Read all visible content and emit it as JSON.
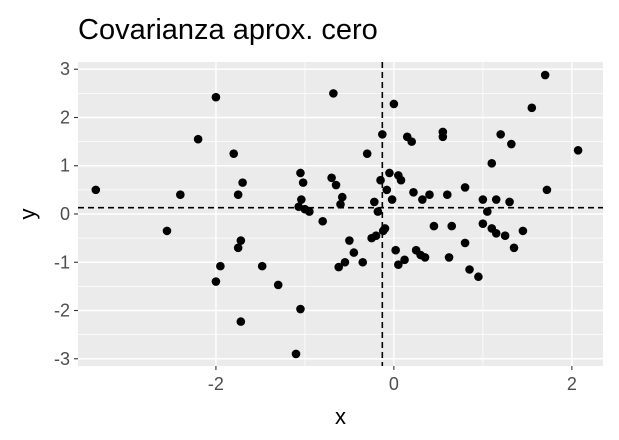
{
  "chart_data": {
    "type": "scatter",
    "title": "Covarianza aprox. cero",
    "xlabel": "x",
    "ylabel": "y",
    "xlim": [
      -3.55,
      2.35
    ],
    "ylim": [
      -3.15,
      3.15
    ],
    "x_ticks": [
      -2,
      0,
      2
    ],
    "x_tick_labels": [
      "-2",
      "0",
      "2"
    ],
    "y_ticks": [
      -3,
      -2,
      -1,
      0,
      1,
      2,
      3
    ],
    "y_tick_labels": [
      "-3",
      "-2",
      "-1",
      "0",
      "1",
      "2",
      "3"
    ],
    "grid": true,
    "panel_background": "#ebebeb",
    "grid_color": "#ffffff",
    "point_color": "#000000",
    "reference_lines": {
      "vertical_x": -0.13,
      "horizontal_y": 0.13,
      "style": "dashed"
    },
    "x": [
      -3.35,
      -2.55,
      -2.4,
      -2.2,
      -2.0,
      -2.0,
      -1.95,
      -1.8,
      -1.75,
      -1.75,
      -1.72,
      -1.72,
      -1.7,
      -1.48,
      -1.3,
      -1.1,
      -1.07,
      -1.05,
      -1.05,
      -1.04,
      -1.02,
      -1.0,
      -0.95,
      -0.8,
      -0.7,
      -0.68,
      -0.65,
      -0.62,
      -0.6,
      -0.58,
      -0.55,
      -0.5,
      -0.45,
      -0.35,
      -0.3,
      -0.25,
      -0.22,
      -0.2,
      -0.18,
      -0.15,
      -0.13,
      -0.12,
      -0.1,
      -0.08,
      -0.05,
      -0.02,
      0.0,
      0.02,
      0.05,
      0.05,
      0.08,
      0.12,
      0.15,
      0.2,
      0.22,
      0.25,
      0.3,
      0.32,
      0.35,
      0.4,
      0.45,
      0.55,
      0.55,
      0.6,
      0.62,
      0.65,
      0.8,
      0.8,
      0.85,
      0.95,
      1.0,
      1.0,
      1.05,
      1.1,
      1.1,
      1.15,
      1.15,
      1.2,
      1.25,
      1.3,
      1.32,
      1.35,
      1.45,
      1.55,
      1.7,
      1.72,
      2.07
    ],
    "y": [
      0.5,
      -0.35,
      0.4,
      1.55,
      2.42,
      -1.4,
      -1.08,
      1.25,
      0.4,
      -0.7,
      -0.55,
      -2.23,
      0.65,
      -1.08,
      -1.47,
      -2.9,
      0.15,
      -1.97,
      0.85,
      0.3,
      0.65,
      0.1,
      0.05,
      -0.15,
      0.75,
      2.5,
      0.6,
      -1.1,
      0.2,
      0.35,
      -1.0,
      -0.55,
      -0.8,
      -1.0,
      1.25,
      -0.5,
      0.25,
      -0.45,
      0.05,
      0.7,
      1.65,
      -0.35,
      -0.3,
      0.5,
      0.85,
      0.3,
      2.28,
      -0.75,
      -1.05,
      0.8,
      0.7,
      -0.95,
      1.6,
      1.5,
      0.45,
      -0.75,
      -0.85,
      0.3,
      -0.9,
      0.4,
      -0.25,
      1.6,
      1.7,
      0.4,
      -0.9,
      -0.25,
      0.55,
      -0.6,
      -1.15,
      -1.3,
      0.3,
      -0.2,
      0.05,
      -0.3,
      1.05,
      -0.4,
      0.3,
      1.65,
      -0.45,
      0.25,
      1.45,
      -0.7,
      -0.35,
      2.2,
      2.88,
      0.5,
      1.32
    ]
  }
}
